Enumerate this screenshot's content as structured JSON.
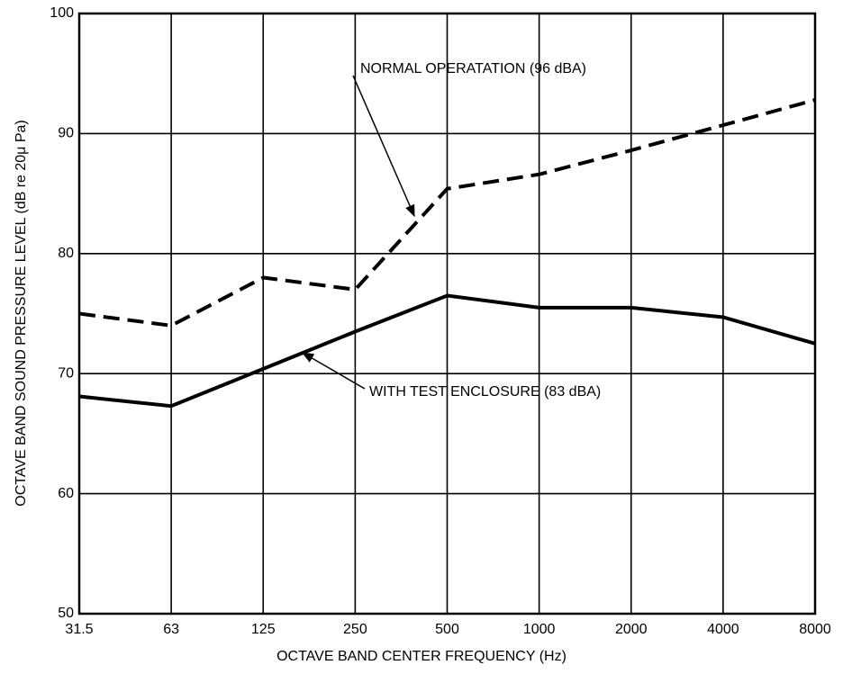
{
  "chart_data": {
    "type": "line",
    "categories": [
      "31.5",
      "63",
      "125",
      "250",
      "500",
      "1000",
      "2000",
      "4000",
      "8000"
    ],
    "series": [
      {
        "name": "NORMAL OPERATATION (96 dBA)",
        "color": "#000000",
        "dashed": true,
        "values": [
          75,
          74,
          78,
          77,
          85.4,
          86.6,
          88.6,
          90.7,
          92.8
        ]
      },
      {
        "name": "WITH TEST ENCLOSURE (83 dBA)",
        "color": "#000000",
        "dashed": false,
        "values": [
          68.1,
          67.3,
          70.4,
          73.5,
          76.5,
          75.5,
          75.5,
          74.7,
          72.5
        ]
      }
    ],
    "ylim": [
      50,
      100
    ],
    "yticks": [
      50,
      60,
      70,
      80,
      90,
      100
    ],
    "grid": true,
    "ylabel": "OCTAVE BAND SOUND PRESSURE LEVEL (dB re 20μ Pa)",
    "xlabel": "OCTAVE BAND CENTER FREQUENCY (Hz)"
  }
}
